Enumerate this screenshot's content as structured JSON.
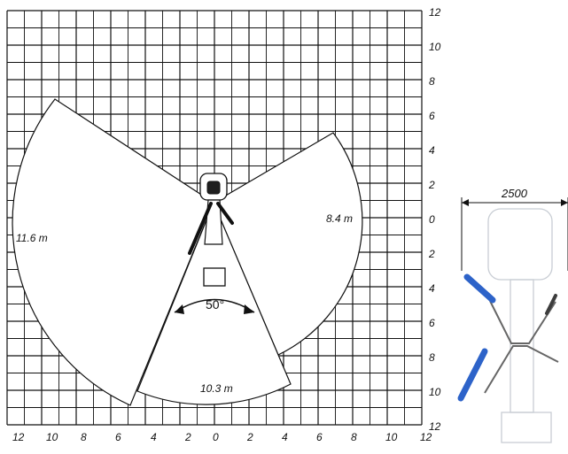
{
  "chart_data": {
    "type": "diagram",
    "axes": {
      "x_ticks": [
        "12",
        "10",
        "8",
        "6",
        "4",
        "2",
        "0",
        "2",
        "4",
        "6",
        "8",
        "10",
        "12"
      ],
      "y_ticks": [
        "12",
        "10",
        "8",
        "6",
        "4",
        "2",
        "0",
        "2",
        "4",
        "6",
        "8",
        "10",
        "12"
      ],
      "grid": true
    },
    "reach_labels": {
      "left": "11.6 m",
      "right": "8.4 m",
      "bottom": "10.3 m"
    },
    "angle_label": "50°",
    "width_dimension": "2500",
    "colors": {
      "outrigger": "#2d63c9",
      "grid": "#111111",
      "sector_fill": "#ffffff",
      "machine_ghost": "#c8cdd4"
    }
  }
}
